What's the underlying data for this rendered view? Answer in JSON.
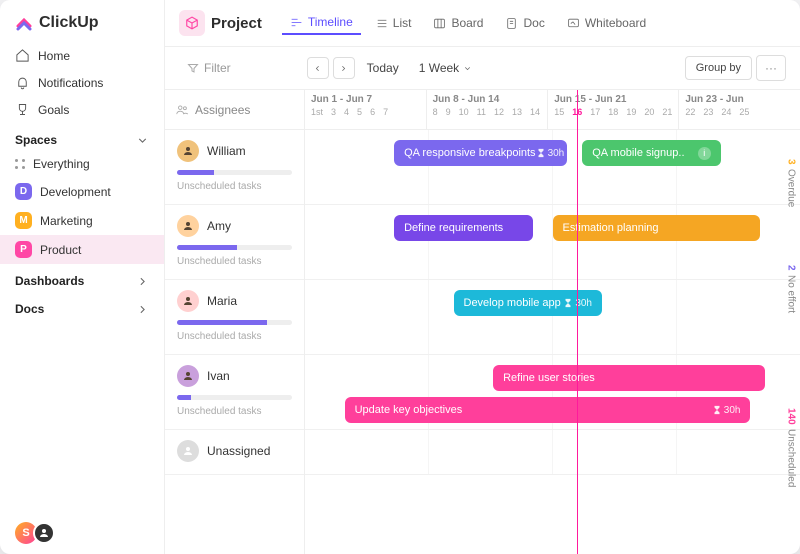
{
  "brand": {
    "name": "ClickUp",
    "logo_colors": [
      "#ff5de2",
      "#7b68ee",
      "#00c9e0",
      "#ffc800"
    ]
  },
  "nav": {
    "home": "Home",
    "notifications": "Notifications",
    "goals": "Goals"
  },
  "sections": {
    "spaces": "Spaces",
    "dashboards": "Dashboards",
    "docs": "Docs"
  },
  "spaces": [
    {
      "label": "Everything",
      "type": "all"
    },
    {
      "label": "Development",
      "letter": "D",
      "color": "#7b68ee"
    },
    {
      "label": "Marketing",
      "letter": "M",
      "color": "#ffb020"
    },
    {
      "label": "Product",
      "letter": "P",
      "color": "#ff47a5",
      "active": true
    }
  ],
  "project": {
    "title": "Project",
    "cube_color": "#ff47a5"
  },
  "views": {
    "timeline": "Timeline",
    "list": "List",
    "board": "Board",
    "doc": "Doc",
    "whiteboard": "Whiteboard"
  },
  "toolbar": {
    "filter": "Filter",
    "today": "Today",
    "range": "1 Week",
    "group_by": "Group by",
    "assignees": "Assignees"
  },
  "timeline_header": {
    "weeks": [
      "Jun 1 - Jun 7",
      "Jun 8 - Jun 14",
      "Jun 15 - Jun 21",
      "Jun 23 - Jun"
    ],
    "days": [
      [
        "1st",
        "3",
        "4",
        "5",
        "6",
        "7"
      ],
      [
        "8",
        "9",
        "10",
        "11",
        "12",
        "13",
        "14"
      ],
      [
        "15",
        "16",
        "17",
        "18",
        "19",
        "20",
        "21"
      ],
      [
        "22",
        "23",
        "24",
        "25"
      ]
    ],
    "today_index": {
      "week": 2,
      "day": 1
    },
    "today_line_left_pct": 55
  },
  "colors": {
    "purple": "#7b68ee",
    "green": "#4cc66d",
    "deep_purple": "#7847e8",
    "orange": "#f5a623",
    "cyan": "#1db9d9",
    "pink": "#ff3f9b",
    "progress": "#7b68ee"
  },
  "rows": [
    {
      "name": "William",
      "avatar_bg": "#f0c27b",
      "progress_pct": 32,
      "unscheduled": "Unscheduled tasks",
      "tasks": [
        {
          "label": "QA responsive breakpoints",
          "hours": "30h",
          "color": "purple",
          "left_pct": 18,
          "width_pct": 35
        },
        {
          "label": "QA mobile signup..",
          "color": "green",
          "left_pct": 56,
          "width_pct": 28,
          "info": true
        }
      ]
    },
    {
      "name": "Amy",
      "avatar_bg": "#ffd29e",
      "progress_pct": 52,
      "unscheduled": "Unscheduled tasks",
      "tasks": [
        {
          "label": "Define requirements",
          "color": "deep_purple",
          "left_pct": 18,
          "width_pct": 28
        },
        {
          "label": "Estimation planning",
          "color": "orange",
          "left_pct": 50,
          "width_pct": 42
        }
      ]
    },
    {
      "name": "Maria",
      "avatar_bg": "#ffd0d0",
      "progress_pct": 78,
      "unscheduled": "Unscheduled tasks",
      "tasks": [
        {
          "label": "Develop mobile app",
          "hours": "30h",
          "color": "cyan",
          "left_pct": 30,
          "width_pct": 30
        }
      ]
    },
    {
      "name": "Ivan",
      "avatar_bg": "#c9a0dc",
      "progress_pct": 12,
      "unscheduled": "Unscheduled tasks",
      "tasks": [
        {
          "label": "Refine user stories",
          "color": "pink",
          "left_pct": 38,
          "width_pct": 55
        },
        {
          "label": "Update key objectives",
          "hours": "30h",
          "color": "pink",
          "left_pct": 8,
          "width_pct": 82,
          "second_row": true
        }
      ]
    },
    {
      "name": "Unassigned",
      "unassigned": true
    }
  ],
  "rail": [
    {
      "n": "3",
      "label": "Overdue",
      "color": "#ffb020",
      "flex": 1
    },
    {
      "n": "2",
      "label": "No effort",
      "color": "#7b68ee",
      "flex": 1
    },
    {
      "n": "140",
      "label": "Unscheduled",
      "color": "#ff3f9b",
      "flex": 2
    }
  ],
  "user_bar": {
    "initial": "S",
    "gradient": [
      "#ffb020",
      "#ff3f9b"
    ]
  }
}
